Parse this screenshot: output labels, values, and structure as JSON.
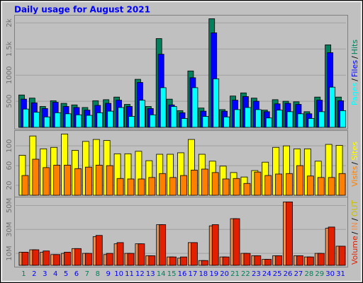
{
  "chart_data": [
    {
      "type": "bar",
      "title": "Daily usage for August 2021",
      "ylim": [
        0,
        2100
      ],
      "yticks": [
        500,
        1000,
        {
          "value": 1500,
          "label": "1.5k"
        },
        {
          "value": 2000,
          "label": "2k"
        }
      ],
      "grid": true,
      "legend_sep": "/",
      "series": [
        {
          "name": "Pages",
          "color": "#00ffff",
          "values": [
            350,
            290,
            200,
            280,
            260,
            240,
            230,
            280,
            310,
            380,
            210,
            520,
            240,
            760,
            400,
            170,
            760,
            210,
            930,
            200,
            340,
            380,
            340,
            180,
            330,
            300,
            260,
            170,
            300,
            770,
            320
          ]
        },
        {
          "name": "Files",
          "color": "#0000ff",
          "values": [
            540,
            470,
            360,
            480,
            400,
            380,
            330,
            420,
            460,
            520,
            400,
            860,
            360,
            1400,
            430,
            280,
            950,
            310,
            1810,
            310,
            520,
            590,
            500,
            300,
            450,
            460,
            440,
            260,
            520,
            1430,
            510
          ]
        },
        {
          "name": "Hits",
          "color": "#00805c",
          "values": [
            620,
            560,
            400,
            510,
            460,
            430,
            380,
            510,
            530,
            580,
            440,
            920,
            400,
            1700,
            540,
            320,
            1080,
            370,
            2080,
            340,
            600,
            660,
            560,
            330,
            530,
            500,
            490,
            300,
            580,
            1580,
            580
          ]
        }
      ]
    },
    {
      "type": "bar",
      "ylim": [
        0,
        126
      ],
      "yticks": [
        20,
        60,
        100
      ],
      "grid": true,
      "legend_sep": "/",
      "series": [
        {
          "name": "Visits",
          "color": "#ff8000",
          "values": [
            40,
            73,
            56,
            61,
            61,
            54,
            57,
            61,
            60,
            34,
            33,
            33,
            36,
            44,
            36,
            40,
            51,
            53,
            46,
            33,
            34,
            24,
            47,
            40,
            43,
            44,
            60,
            39,
            36,
            36,
            44
          ]
        },
        {
          "name": "Sites",
          "color": "#ffff00",
          "values": [
            81,
            120,
            94,
            97,
            124,
            91,
            109,
            113,
            111,
            84,
            84,
            89,
            70,
            83,
            83,
            86,
            113,
            83,
            69,
            59,
            46,
            37,
            50,
            67,
            97,
            100,
            94,
            94,
            69,
            103,
            101
          ]
        }
      ]
    },
    {
      "type": "bar",
      "ylim": [
        0,
        55
      ],
      "yticks": [
        {
          "value": 10,
          "label": "10M"
        },
        {
          "value": 30,
          "label": "30M"
        },
        {
          "value": 50,
          "label": "50M"
        }
      ],
      "grid": true,
      "legend_sep": "/",
      "series": [
        {
          "name": "Volume",
          "color": "#e02000",
          "values": [
            11,
            13,
            12,
            9,
            11,
            14,
            10,
            25,
            10,
            19,
            10,
            18,
            8,
            34,
            7,
            7,
            19,
            4,
            34,
            7,
            39,
            10,
            8,
            5,
            8,
            53,
            8,
            7,
            10,
            32,
            16
          ]
        },
        {
          "name": "IN",
          "color": "#f09050",
          "values": [
            11,
            13,
            11,
            9,
            10,
            14,
            10,
            24,
            9,
            18,
            10,
            18,
            8,
            34,
            7,
            6,
            19,
            4,
            33,
            7,
            39,
            10,
            8,
            5,
            8,
            53,
            8,
            7,
            10,
            31,
            16
          ]
        }
      ],
      "extra_legend": [
        {
          "name": "OUT",
          "color": "#c8c000"
        }
      ],
      "categories": [
        "1",
        "2",
        "3",
        "4",
        "5",
        "6",
        "7",
        "8",
        "9",
        "10",
        "11",
        "12",
        "13",
        "14",
        "15",
        "16",
        "17",
        "18",
        "19",
        "20",
        "21",
        "22",
        "23",
        "24",
        "25",
        "26",
        "27",
        "28",
        "29",
        "30",
        "31"
      ],
      "category_colors": [
        "#00805c",
        "#0000ff",
        "#0000ff",
        "#0000ff",
        "#0000ff",
        "#0000ff",
        "#00805c",
        "#00805c",
        "#0000ff",
        "#0000ff",
        "#0000ff",
        "#0000ff",
        "#0000ff",
        "#00805c",
        "#00805c",
        "#0000ff",
        "#0000ff",
        "#0000ff",
        "#0000ff",
        "#0000ff",
        "#00805c",
        "#00805c",
        "#0000ff",
        "#0000ff",
        "#0000ff",
        "#0000ff",
        "#0000ff",
        "#00805c",
        "#00805c",
        "#0000ff",
        "#0000ff"
      ]
    }
  ]
}
